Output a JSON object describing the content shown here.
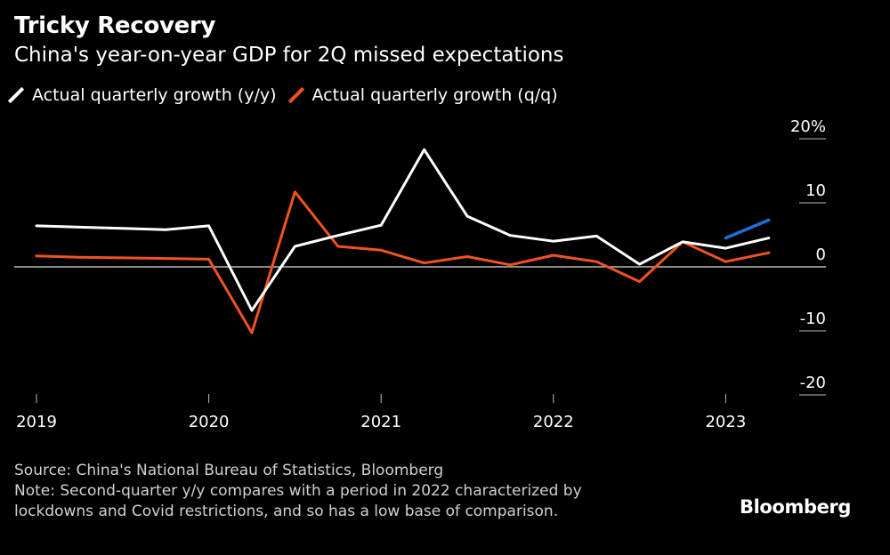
{
  "title": "Tricky Recovery",
  "subtitle": "China's year-on-year GDP for 2Q missed expectations",
  "legend": {
    "yy_label": "Actual quarterly growth (y/y)",
    "qq_label": "Actual quarterly growth (q/q)"
  },
  "footer": {
    "source": "Source: China's National Bureau of Statistics, Bloomberg",
    "note_line1": "Note: Second-quarter y/y compares with a period in 2022 characterized by",
    "note_line2": "lockdowns and Covid restrictions, and so has a low base of comparison."
  },
  "logo": "Bloomberg",
  "colors": {
    "background": "#000000",
    "yy": "#ffffff",
    "qq": "#f2531e",
    "forecast": "#1f6fd6",
    "zero_line": "#bbbbbb",
    "axis_text": "#ffffff"
  },
  "chart_data": {
    "type": "line",
    "x": [
      "2019-Q1",
      "2019-Q2",
      "2019-Q3",
      "2019-Q4",
      "2020-Q1",
      "2020-Q2",
      "2020-Q3",
      "2020-Q4",
      "2021-Q1",
      "2021-Q2",
      "2021-Q3",
      "2021-Q4",
      "2022-Q1",
      "2022-Q2",
      "2022-Q3",
      "2022-Q4",
      "2023-Q1",
      "2023-Q2"
    ],
    "x_tick_labels": [
      "2019",
      "2020",
      "2021",
      "2022",
      "2023"
    ],
    "y_tick_labels": [
      "20%",
      "10",
      "0",
      "-10",
      "-20"
    ],
    "y_ticks": [
      20,
      10,
      0,
      -10,
      -20
    ],
    "ylim": [
      -20,
      20
    ],
    "series": [
      {
        "name": "Actual quarterly growth (y/y)",
        "values": [
          6.4,
          6.2,
          6.0,
          5.8,
          6.4,
          -6.8,
          3.2,
          4.9,
          6.5,
          18.3,
          7.9,
          4.9,
          4.0,
          4.8,
          0.4,
          3.9,
          2.9,
          4.5
        ]
      },
      {
        "name": "Actual quarterly growth (q/q)",
        "values": [
          1.7,
          1.5,
          1.4,
          1.3,
          1.2,
          -10.3,
          11.7,
          3.2,
          2.6,
          0.6,
          1.6,
          0.3,
          1.8,
          0.8,
          -2.3,
          3.9,
          0.8,
          2.2
        ]
      },
      {
        "x": [
          "2023-Q1",
          "2023-Q2"
        ],
        "values": [
          4.5,
          7.3
        ]
      }
    ],
    "grid": false,
    "legend_position": "top-left"
  }
}
